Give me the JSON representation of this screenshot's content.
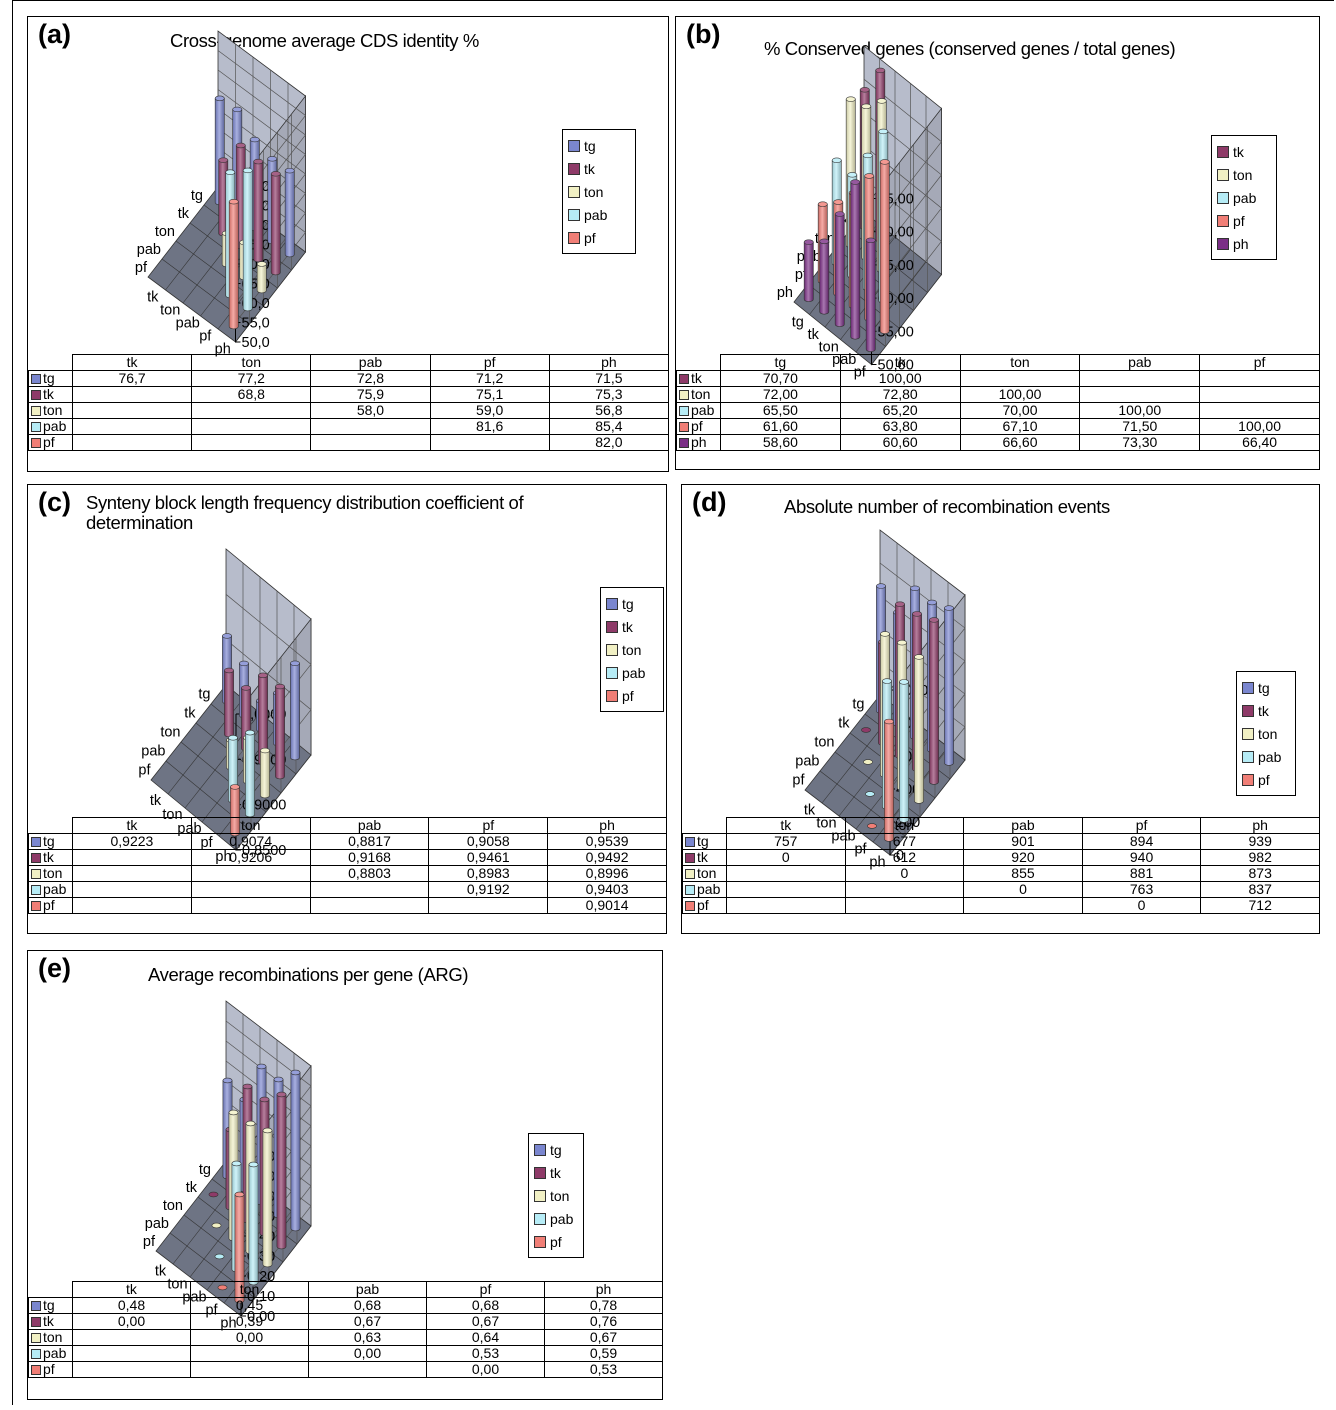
{
  "colors": {
    "tg": "#7a86cf",
    "tk": "#8e3a68",
    "ton": "#f1f0c4",
    "pab": "#b6ecf6",
    "pf": "#f07e76",
    "ph": "#7b2e86",
    "wall": "#b7bccb",
    "floor": "#6e7484"
  },
  "chart_data": [
    {
      "type": "bar3d",
      "panel_letter": "(a)",
      "title": "Cross-genome average CDS identity %",
      "row_labels": [
        "tg",
        "tk",
        "ton",
        "pab",
        "pf"
      ],
      "col_labels": [
        "tk",
        "ton",
        "pab",
        "pf",
        "ph"
      ],
      "legend": [
        "tg",
        "tk",
        "ton",
        "pab",
        "pf"
      ],
      "zlim": [
        50,
        90
      ],
      "z_ticks": [
        "90,0",
        "85,0",
        "80,0",
        "75,0",
        "70,0",
        "65,0",
        "60,0",
        "55,0",
        "50,0"
      ],
      "values": [
        [
          76.7,
          77.2,
          72.8,
          71.2,
          71.5
        ],
        [
          null,
          68.8,
          75.9,
          75.1,
          75.3
        ],
        [
          null,
          null,
          58.0,
          59.0,
          56.8
        ],
        [
          null,
          null,
          null,
          81.6,
          85.4
        ],
        [
          null,
          null,
          null,
          null,
          82.0
        ]
      ],
      "table": [
        [
          "76,7",
          "77,2",
          "72,8",
          "71,2",
          "71,5"
        ],
        [
          "",
          "68,8",
          "75,9",
          "75,1",
          "75,3"
        ],
        [
          "",
          "",
          "58,0",
          "59,0",
          "56,8"
        ],
        [
          "",
          "",
          "",
          "81,6",
          "85,4"
        ],
        [
          "",
          "",
          "",
          "",
          "82,0"
        ]
      ]
    },
    {
      "type": "bar3d",
      "panel_letter": "(b)",
      "title": "% Conserved genes  (conserved genes / total genes)",
      "row_labels": [
        "tk",
        "ton",
        "pab",
        "pf",
        "ph"
      ],
      "col_labels": [
        "tg",
        "tk",
        "ton",
        "pab",
        "pf"
      ],
      "legend": [
        "tk",
        "ton",
        "pab",
        "pf",
        "ph"
      ],
      "zlim": [
        50,
        75
      ],
      "z_ticks": [
        "75,00",
        "70,00",
        "65,00",
        "60,00",
        "55,00",
        "50,00"
      ],
      "values": [
        [
          70.7,
          100,
          null,
          null,
          null
        ],
        [
          72.0,
          72.8,
          100,
          null,
          null
        ],
        [
          65.5,
          65.2,
          70.0,
          100,
          null
        ],
        [
          61.6,
          63.8,
          67.1,
          71.5,
          100
        ],
        [
          58.6,
          60.6,
          66.6,
          73.3,
          66.4
        ]
      ],
      "table": [
        [
          "70,70",
          "100,00",
          "",
          "",
          ""
        ],
        [
          "72,00",
          "72,80",
          "100,00",
          "",
          ""
        ],
        [
          "65,50",
          "65,20",
          "70,00",
          "100,00",
          ""
        ],
        [
          "61,60",
          "63,80",
          "67,10",
          "71,50",
          "100,00"
        ],
        [
          "58,60",
          "60,60",
          "66,60",
          "73,30",
          "66,40"
        ]
      ]
    },
    {
      "type": "bar3d",
      "panel_letter": "(c)",
      "title": "Synteny block length  frequency distribution coefficient of determination",
      "row_labels": [
        "tg",
        "tk",
        "ton",
        "pab",
        "pf"
      ],
      "col_labels": [
        "tk",
        "ton",
        "pab",
        "pf",
        "ph"
      ],
      "legend": [
        "tg",
        "tk",
        "ton",
        "pab",
        "pf"
      ],
      "zlim": [
        0.85,
        1.0
      ],
      "z_ticks": [
        "1,0000",
        "0,9500",
        "0,9000",
        "0,8500"
      ],
      "values": [
        [
          0.9223,
          0.9074,
          0.8817,
          0.9058,
          0.9539
        ],
        [
          null,
          0.9206,
          0.9168,
          0.9461,
          0.9492
        ],
        [
          null,
          null,
          0.8803,
          0.8983,
          0.8996
        ],
        [
          null,
          null,
          null,
          0.9192,
          0.9403
        ],
        [
          null,
          null,
          null,
          null,
          0.9014
        ]
      ],
      "table": [
        [
          "0,9223",
          "0,9074",
          "0,8817",
          "0,9058",
          "0,9539"
        ],
        [
          "",
          "0,9206",
          "0,9168",
          "0,9461",
          "0,9492"
        ],
        [
          "",
          "",
          "0,8803",
          "0,8983",
          "0,8996"
        ],
        [
          "",
          "",
          "",
          "0,9192",
          "0,9403"
        ],
        [
          "",
          "",
          "",
          "",
          "0,9014"
        ]
      ]
    },
    {
      "type": "bar3d",
      "panel_letter": "(d)",
      "title": "Absolute number of recombination events",
      "row_labels": [
        "tg",
        "tk",
        "ton",
        "pab",
        "pf"
      ],
      "col_labels": [
        "tk",
        "ton",
        "pab",
        "pf",
        "ph"
      ],
      "legend": [
        "tg",
        "tk",
        "ton",
        "pab",
        "pf"
      ],
      "zlim": [
        0,
        1000
      ],
      "z_ticks": [
        "1000",
        "800",
        "600",
        "400",
        "200",
        "0"
      ],
      "values": [
        [
          757,
          677,
          901,
          894,
          939
        ],
        [
          0,
          612,
          920,
          940,
          982
        ],
        [
          null,
          0,
          855,
          881,
          873
        ],
        [
          null,
          null,
          0,
          763,
          837
        ],
        [
          null,
          null,
          null,
          0,
          712
        ]
      ],
      "table": [
        [
          "757",
          "677",
          "901",
          "894",
          "939"
        ],
        [
          "0",
          "612",
          "920",
          "940",
          "982"
        ],
        [
          "",
          "0",
          "855",
          "881",
          "873"
        ],
        [
          "",
          "",
          "0",
          "763",
          "837"
        ],
        [
          "",
          "",
          "",
          "0",
          "712"
        ]
      ]
    },
    {
      "type": "bar3d",
      "panel_letter": "(e)",
      "title": "Average recombinations per gene (ARG)",
      "row_labels": [
        "tg",
        "tk",
        "ton",
        "pab",
        "pf"
      ],
      "col_labels": [
        "tk",
        "ton",
        "pab",
        "pf",
        "ph"
      ],
      "legend": [
        "tg",
        "tk",
        "ton",
        "pab",
        "pf"
      ],
      "zlim": [
        0,
        0.8
      ],
      "z_ticks": [
        "0,80",
        "0,70",
        "0,60",
        "0,50",
        "0,40",
        "0,30",
        "0,20",
        "0,10",
        "0,00"
      ],
      "values": [
        [
          0.48,
          0.45,
          0.68,
          0.68,
          0.78
        ],
        [
          0.0,
          0.39,
          0.67,
          0.67,
          0.76
        ],
        [
          null,
          0.0,
          0.63,
          0.64,
          0.67
        ],
        [
          null,
          null,
          0.0,
          0.53,
          0.59
        ],
        [
          null,
          null,
          null,
          0.0,
          0.53
        ]
      ],
      "table": [
        [
          "0,48",
          "0,45",
          "0,68",
          "0,68",
          "0,78"
        ],
        [
          "0,00",
          "0,39",
          "0,67",
          "0,67",
          "0,76"
        ],
        [
          "",
          "0,00",
          "0,63",
          "0,64",
          "0,67"
        ],
        [
          "",
          "",
          "0,00",
          "0,53",
          "0,59"
        ],
        [
          "",
          "",
          "",
          "0,00",
          "0,53"
        ]
      ]
    }
  ]
}
